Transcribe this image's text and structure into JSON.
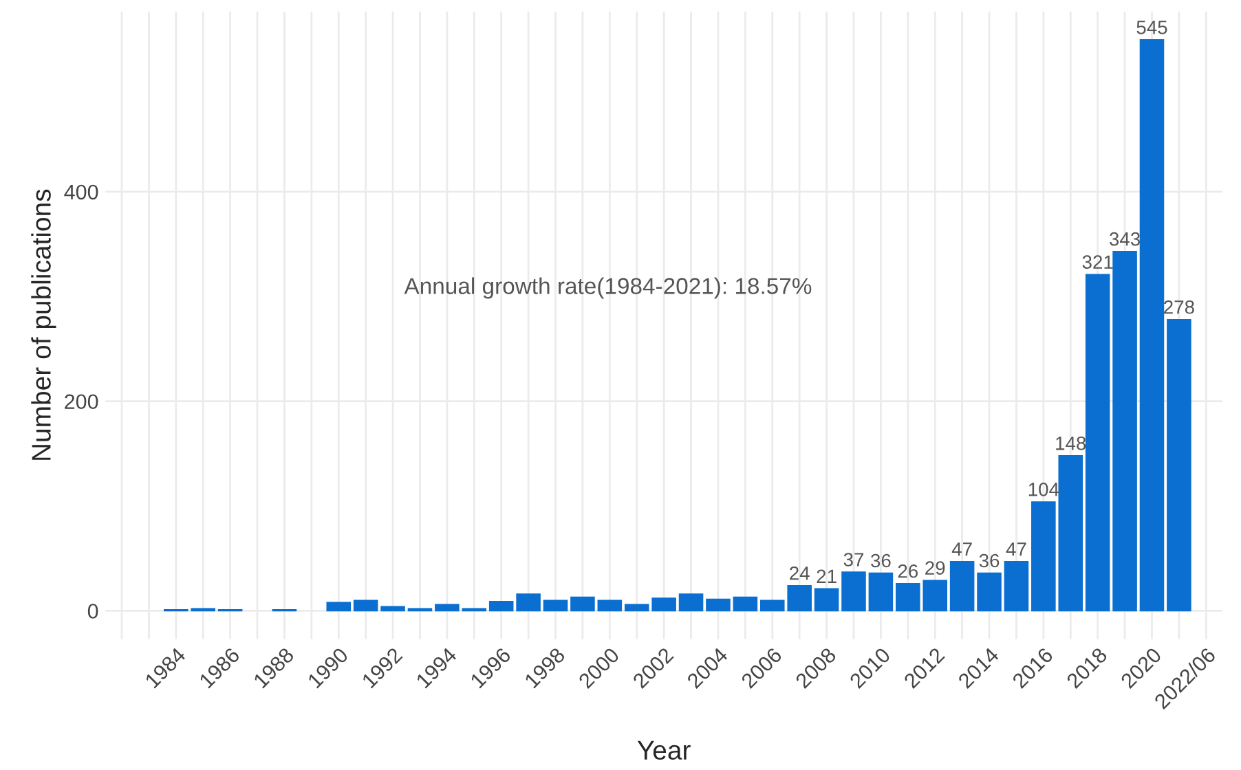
{
  "chart_data": {
    "type": "bar",
    "xlabel": "Year",
    "ylabel": "Number of publications",
    "categories": [
      "1984",
      null,
      "1986",
      null,
      "1988",
      null,
      "1990",
      null,
      "1992",
      null,
      "1994",
      null,
      "1996",
      null,
      "1998",
      null,
      "2000",
      null,
      "2002",
      null,
      "2004",
      null,
      "2006",
      null,
      "2008",
      null,
      "2010",
      null,
      "2012",
      null,
      "2014",
      null,
      "2016",
      null,
      "2018",
      null,
      "2020",
      null,
      "2022/06"
    ],
    "values": [
      1,
      2,
      1,
      null,
      1,
      null,
      8,
      10,
      4,
      2,
      6,
      2,
      9,
      16,
      10,
      13,
      10,
      6,
      12,
      16,
      11,
      13,
      10,
      24,
      21,
      37,
      36,
      26,
      29,
      47,
      36,
      47,
      104,
      148,
      321,
      343,
      545,
      278,
      null
    ],
    "value_labels": [
      null,
      null,
      null,
      null,
      null,
      null,
      null,
      null,
      null,
      null,
      null,
      null,
      null,
      null,
      null,
      null,
      null,
      null,
      null,
      null,
      null,
      null,
      null,
      "24",
      "21",
      "37",
      "36",
      "26",
      "29",
      "47",
      "36",
      "47",
      "104",
      "148",
      "321",
      "343",
      "545",
      "278",
      null
    ],
    "color": "#0a6fd0",
    "ylim": [
      -27,
      572
    ],
    "yticks": [
      0,
      200,
      400
    ],
    "grid": true,
    "annotations": [
      "Annual growth rate(1984-2021): 18.57%"
    ]
  }
}
